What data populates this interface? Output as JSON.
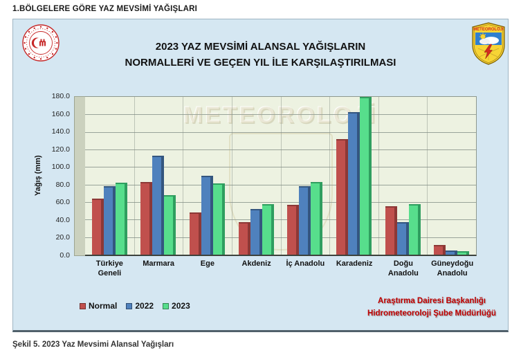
{
  "page": {
    "header": "1.BÖLGELERE GÖRE YAZ MEVSİMİ YAĞIŞLARI",
    "caption": "Şekil 5. 2023 Yaz Mevsimi Alansal Yağışları"
  },
  "chart": {
    "title_line1": "2023 YAZ MEVSİMİ ALANSAL YAĞIŞLARIN",
    "title_line2": "NORMALLERİ VE GEÇEN YIL İLE KARŞILAŞTIRILMASI",
    "watermark": "METEOROLOJİ",
    "badge_label": "METEOROLOJİ",
    "dept_line1": "Araştırma Dairesi Başkanlığı",
    "dept_line2": "Hidrometeoroloji Şube Müdürlüğü"
  },
  "chart_data": {
    "type": "bar",
    "title": "2023 YAZ MEVSİMİ ALANSAL YAĞIŞLARIN NORMALLERİ VE GEÇEN YIL İLE KARŞILAŞTIRILMASI",
    "xlabel": "",
    "ylabel": "Yağış (mm)",
    "ylim": [
      0,
      180
    ],
    "ytick_step": 20,
    "yticks": [
      "180.0",
      "160.0",
      "140.0",
      "120.0",
      "100.0",
      "80.0",
      "60.0",
      "40.0",
      "20.0",
      "0.0"
    ],
    "grid": true,
    "legend_position": "bottom-left",
    "categories": [
      "Türkiye Geneli",
      "Marmara",
      "Ege",
      "Akdeniz",
      "İç Anadolu",
      "Karadeniz",
      "Doğu Anadolu",
      "Güneydoğu Anadolu"
    ],
    "series": [
      {
        "name": "Normal",
        "color": "#c0504d",
        "dark": "#8c3836",
        "values": [
          64,
          83,
          48,
          37,
          57,
          132,
          55,
          11
        ]
      },
      {
        "name": "2022",
        "color": "#4f81bd",
        "dark": "#34567f",
        "values": [
          78,
          113,
          90,
          52,
          78,
          163,
          37,
          5
        ]
      },
      {
        "name": "2023",
        "color": "#57de8c",
        "dark": "#2f9e5f",
        "values": [
          82,
          68,
          81,
          58,
          83,
          180,
          58,
          4
        ]
      }
    ]
  }
}
